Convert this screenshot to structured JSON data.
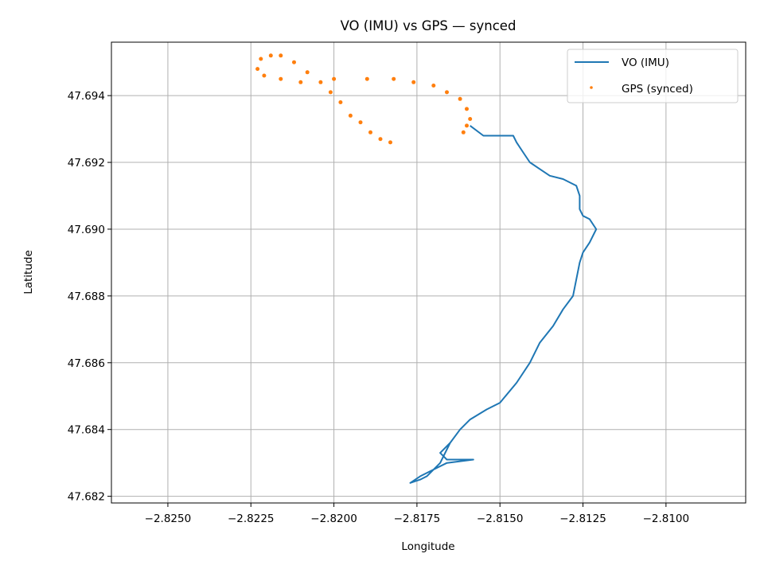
{
  "chart_data": {
    "type": "line",
    "title": "VO (IMU) vs GPS — synced",
    "xlabel": "Longitude",
    "ylabel": "Latitude",
    "xlim": [
      -2.8267,
      -2.8076
    ],
    "ylim": [
      47.6818,
      47.6956
    ],
    "xticks": [
      -2.825,
      -2.8225,
      -2.82,
      -2.8175,
      -2.815,
      -2.8125,
      -2.81
    ],
    "xtick_labels": [
      "−2.8250",
      "−2.8225",
      "−2.8200",
      "−2.8175",
      "−2.8150",
      "−2.8125",
      "−2.8100"
    ],
    "yticks": [
      47.682,
      47.684,
      47.686,
      47.688,
      47.69,
      47.692,
      47.694
    ],
    "ytick_labels": [
      "47.682",
      "47.684",
      "47.686",
      "47.688",
      "47.690",
      "47.692",
      "47.694"
    ],
    "grid": true,
    "legend_position": "top-right",
    "series": [
      {
        "name": "VO (IMU)",
        "style": "line",
        "color": "#1f77b4",
        "points": [
          [
            -2.8159,
            47.6931
          ],
          [
            -2.8155,
            47.6928
          ],
          [
            -2.815,
            47.6928
          ],
          [
            -2.8146,
            47.6928
          ],
          [
            -2.8145,
            47.6926
          ],
          [
            -2.8143,
            47.6923
          ],
          [
            -2.8141,
            47.692
          ],
          [
            -2.8138,
            47.6918
          ],
          [
            -2.8135,
            47.6916
          ],
          [
            -2.8131,
            47.6915
          ],
          [
            -2.8127,
            47.6913
          ],
          [
            -2.8126,
            47.691
          ],
          [
            -2.8126,
            47.6906
          ],
          [
            -2.8125,
            47.6904
          ],
          [
            -2.8123,
            47.6903
          ],
          [
            -2.8121,
            47.69
          ],
          [
            -2.8123,
            47.6896
          ],
          [
            -2.8125,
            47.6893
          ],
          [
            -2.8126,
            47.689
          ],
          [
            -2.8127,
            47.6885
          ],
          [
            -2.8128,
            47.688
          ],
          [
            -2.8131,
            47.6876
          ],
          [
            -2.8134,
            47.6871
          ],
          [
            -2.8138,
            47.6866
          ],
          [
            -2.8141,
            47.686
          ],
          [
            -2.8145,
            47.6854
          ],
          [
            -2.815,
            47.6848
          ],
          [
            -2.8154,
            47.6846
          ],
          [
            -2.8159,
            47.6843
          ],
          [
            -2.8162,
            47.684
          ],
          [
            -2.8165,
            47.6836
          ],
          [
            -2.8168,
            47.6833
          ],
          [
            -2.8166,
            47.6831
          ],
          [
            -2.8158,
            47.6831
          ],
          [
            -2.8166,
            47.683
          ],
          [
            -2.817,
            47.6828
          ],
          [
            -2.8174,
            47.6826
          ],
          [
            -2.8177,
            47.6824
          ],
          [
            -2.8174,
            47.6825
          ],
          [
            -2.8172,
            47.6826
          ],
          [
            -2.8168,
            47.683
          ],
          [
            -2.8165,
            47.6836
          ]
        ]
      },
      {
        "name": "GPS (synced)",
        "style": "dots",
        "color": "#ff7f0e",
        "points": [
          [
            -2.8183,
            47.6926
          ],
          [
            -2.8186,
            47.6927
          ],
          [
            -2.8189,
            47.6929
          ],
          [
            -2.8192,
            47.6932
          ],
          [
            -2.8195,
            47.6934
          ],
          [
            -2.8198,
            47.6938
          ],
          [
            -2.8201,
            47.6941
          ],
          [
            -2.8204,
            47.6944
          ],
          [
            -2.8208,
            47.6947
          ],
          [
            -2.8212,
            47.695
          ],
          [
            -2.8216,
            47.6952
          ],
          [
            -2.8219,
            47.6952
          ],
          [
            -2.8222,
            47.6951
          ],
          [
            -2.8223,
            47.6948
          ],
          [
            -2.8221,
            47.6946
          ],
          [
            -2.8216,
            47.6945
          ],
          [
            -2.821,
            47.6944
          ],
          [
            -2.82,
            47.6945
          ],
          [
            -2.819,
            47.6945
          ],
          [
            -2.8182,
            47.6945
          ],
          [
            -2.8176,
            47.6944
          ],
          [
            -2.817,
            47.6943
          ],
          [
            -2.8166,
            47.6941
          ],
          [
            -2.8162,
            47.6939
          ],
          [
            -2.816,
            47.6936
          ],
          [
            -2.8159,
            47.6933
          ],
          [
            -2.816,
            47.6931
          ],
          [
            -2.8161,
            47.6929
          ]
        ]
      }
    ]
  }
}
